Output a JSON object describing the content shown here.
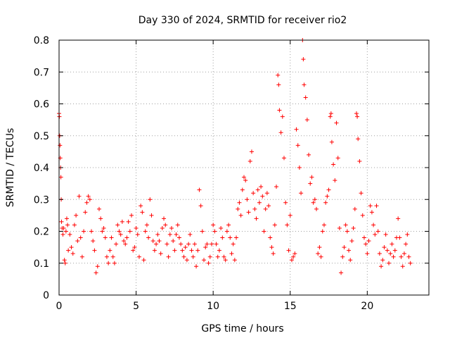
{
  "chart_data": {
    "type": "scatter",
    "title": "Day 330 of 2024, SRMTID for receiver rio2",
    "xlabel": "GPS time / hours",
    "ylabel": "SRMTID / TECUs",
    "xlim": [
      0,
      24
    ],
    "ylim": [
      0,
      0.8
    ],
    "grid": true,
    "marker": "+",
    "xticks": [
      {
        "value": 0,
        "label": "0"
      },
      {
        "value": 5,
        "label": "5"
      },
      {
        "value": 10,
        "label": "10"
      },
      {
        "value": 15,
        "label": "15"
      },
      {
        "value": 20,
        "label": "20"
      }
    ],
    "yticks": [
      {
        "value": 0,
        "label": "0"
      },
      {
        "value": 0.1,
        "label": "0.1"
      },
      {
        "value": 0.2,
        "label": "0.2"
      },
      {
        "value": 0.3,
        "label": "0.3"
      },
      {
        "value": 0.4,
        "label": "0.4"
      },
      {
        "value": 0.5,
        "label": "0.5"
      },
      {
        "value": 0.6,
        "label": "0.6"
      },
      {
        "value": 0.7,
        "label": "0.7"
      },
      {
        "value": 0.8,
        "label": "0.8"
      }
    ],
    "series": [
      {
        "name": "SRMTID",
        "color": "#ff0000",
        "points": [
          [
            0.0,
            0.57
          ],
          [
            0.02,
            0.56
          ],
          [
            0.04,
            0.5
          ],
          [
            0.06,
            0.47
          ],
          [
            0.08,
            0.43
          ],
          [
            0.1,
            0.4
          ],
          [
            0.12,
            0.37
          ],
          [
            0.14,
            0.3
          ],
          [
            0.16,
            0.23
          ],
          [
            0.2,
            0.21
          ],
          [
            0.25,
            0.19
          ],
          [
            0.3,
            0.21
          ],
          [
            0.35,
            0.11
          ],
          [
            0.4,
            0.1
          ],
          [
            0.45,
            0.2
          ],
          [
            0.5,
            0.24
          ],
          [
            0.55,
            0.22
          ],
          [
            0.6,
            0.14
          ],
          [
            0.7,
            0.19
          ],
          [
            0.8,
            0.15
          ],
          [
            0.9,
            0.13
          ],
          [
            1.0,
            0.22
          ],
          [
            1.1,
            0.25
          ],
          [
            1.2,
            0.17
          ],
          [
            1.3,
            0.31
          ],
          [
            1.4,
            0.18
          ],
          [
            1.5,
            0.12
          ],
          [
            1.6,
            0.2
          ],
          [
            1.7,
            0.26
          ],
          [
            1.8,
            0.29
          ],
          [
            1.9,
            0.31
          ],
          [
            2.0,
            0.3
          ],
          [
            2.1,
            0.2
          ],
          [
            2.2,
            0.17
          ],
          [
            2.3,
            0.14
          ],
          [
            2.4,
            0.07
          ],
          [
            2.5,
            0.09
          ],
          [
            2.6,
            0.27
          ],
          [
            2.7,
            0.24
          ],
          [
            2.8,
            0.2
          ],
          [
            2.9,
            0.21
          ],
          [
            3.0,
            0.18
          ],
          [
            3.1,
            0.12
          ],
          [
            3.2,
            0.1
          ],
          [
            3.3,
            0.14
          ],
          [
            3.4,
            0.18
          ],
          [
            3.5,
            0.12
          ],
          [
            3.6,
            0.1
          ],
          [
            3.7,
            0.16
          ],
          [
            3.8,
            0.22
          ],
          [
            3.9,
            0.2
          ],
          [
            4.0,
            0.19
          ],
          [
            4.1,
            0.23
          ],
          [
            4.2,
            0.17
          ],
          [
            4.3,
            0.16
          ],
          [
            4.4,
            0.18
          ],
          [
            4.5,
            0.23
          ],
          [
            4.6,
            0.2
          ],
          [
            4.7,
            0.25
          ],
          [
            4.8,
            0.14
          ],
          [
            4.9,
            0.15
          ],
          [
            5.0,
            0.21
          ],
          [
            5.1,
            0.19
          ],
          [
            5.2,
            0.12
          ],
          [
            5.3,
            0.28
          ],
          [
            5.4,
            0.26
          ],
          [
            5.5,
            0.11
          ],
          [
            5.6,
            0.2
          ],
          [
            5.7,
            0.22
          ],
          [
            5.8,
            0.18
          ],
          [
            5.9,
            0.3
          ],
          [
            6.0,
            0.25
          ],
          [
            6.1,
            0.17
          ],
          [
            6.2,
            0.14
          ],
          [
            6.3,
            0.16
          ],
          [
            6.4,
            0.19
          ],
          [
            6.5,
            0.17
          ],
          [
            6.6,
            0.13
          ],
          [
            6.7,
            0.21
          ],
          [
            6.8,
            0.24
          ],
          [
            6.9,
            0.22
          ],
          [
            7.0,
            0.16
          ],
          [
            7.1,
            0.12
          ],
          [
            7.2,
            0.19
          ],
          [
            7.3,
            0.21
          ],
          [
            7.4,
            0.17
          ],
          [
            7.5,
            0.14
          ],
          [
            7.6,
            0.19
          ],
          [
            7.7,
            0.22
          ],
          [
            7.8,
            0.18
          ],
          [
            7.9,
            0.16
          ],
          [
            8.0,
            0.14
          ],
          [
            8.1,
            0.12
          ],
          [
            8.2,
            0.15
          ],
          [
            8.3,
            0.11
          ],
          [
            8.4,
            0.16
          ],
          [
            8.5,
            0.19
          ],
          [
            8.6,
            0.14
          ],
          [
            8.7,
            0.12
          ],
          [
            8.8,
            0.16
          ],
          [
            8.9,
            0.09
          ],
          [
            9.0,
            0.14
          ],
          [
            9.1,
            0.33
          ],
          [
            9.2,
            0.28
          ],
          [
            9.3,
            0.2
          ],
          [
            9.4,
            0.11
          ],
          [
            9.5,
            0.15
          ],
          [
            9.6,
            0.16
          ],
          [
            9.7,
            0.1
          ],
          [
            9.8,
            0.12
          ],
          [
            9.9,
            0.16
          ],
          [
            10.0,
            0.22
          ],
          [
            10.1,
            0.2
          ],
          [
            10.2,
            0.16
          ],
          [
            10.3,
            0.12
          ],
          [
            10.4,
            0.14
          ],
          [
            10.5,
            0.21
          ],
          [
            10.6,
            0.18
          ],
          [
            10.7,
            0.12
          ],
          [
            10.8,
            0.11
          ],
          [
            10.9,
            0.2
          ],
          [
            11.0,
            0.22
          ],
          [
            11.1,
            0.18
          ],
          [
            11.2,
            0.13
          ],
          [
            11.3,
            0.16
          ],
          [
            11.4,
            0.11
          ],
          [
            11.5,
            0.18
          ],
          [
            11.6,
            0.27
          ],
          [
            11.7,
            0.29
          ],
          [
            11.8,
            0.25
          ],
          [
            11.9,
            0.33
          ],
          [
            12.0,
            0.37
          ],
          [
            12.1,
            0.36
          ],
          [
            12.2,
            0.3
          ],
          [
            12.3,
            0.26
          ],
          [
            12.4,
            0.42
          ],
          [
            12.5,
            0.45
          ],
          [
            12.6,
            0.32
          ],
          [
            12.7,
            0.27
          ],
          [
            12.8,
            0.24
          ],
          [
            12.9,
            0.33
          ],
          [
            13.0,
            0.29
          ],
          [
            13.1,
            0.34
          ],
          [
            13.2,
            0.31
          ],
          [
            13.3,
            0.2
          ],
          [
            13.4,
            0.27
          ],
          [
            13.5,
            0.32
          ],
          [
            13.6,
            0.28
          ],
          [
            13.7,
            0.18
          ],
          [
            13.8,
            0.15
          ],
          [
            13.9,
            0.13
          ],
          [
            14.0,
            0.22
          ],
          [
            14.1,
            0.34
          ],
          [
            14.2,
            0.69
          ],
          [
            14.25,
            0.66
          ],
          [
            14.3,
            0.58
          ],
          [
            14.4,
            0.51
          ],
          [
            14.5,
            0.56
          ],
          [
            14.6,
            0.43
          ],
          [
            14.7,
            0.29
          ],
          [
            14.8,
            0.22
          ],
          [
            14.9,
            0.14
          ],
          [
            15.0,
            0.25
          ],
          [
            15.1,
            0.11
          ],
          [
            15.2,
            0.12
          ],
          [
            15.3,
            0.13
          ],
          [
            15.4,
            0.52
          ],
          [
            15.5,
            0.47
          ],
          [
            15.6,
            0.4
          ],
          [
            15.7,
            0.32
          ],
          [
            15.8,
            0.8
          ],
          [
            15.85,
            0.74
          ],
          [
            15.9,
            0.66
          ],
          [
            16.0,
            0.62
          ],
          [
            16.1,
            0.55
          ],
          [
            16.2,
            0.44
          ],
          [
            16.3,
            0.35
          ],
          [
            16.4,
            0.37
          ],
          [
            16.5,
            0.29
          ],
          [
            16.6,
            0.3
          ],
          [
            16.7,
            0.27
          ],
          [
            16.8,
            0.13
          ],
          [
            16.9,
            0.15
          ],
          [
            17.0,
            0.12
          ],
          [
            17.1,
            0.2
          ],
          [
            17.2,
            0.22
          ],
          [
            17.3,
            0.29
          ],
          [
            17.4,
            0.31
          ],
          [
            17.5,
            0.33
          ],
          [
            17.6,
            0.56
          ],
          [
            17.65,
            0.57
          ],
          [
            17.7,
            0.48
          ],
          [
            17.8,
            0.41
          ],
          [
            17.9,
            0.36
          ],
          [
            18.0,
            0.54
          ],
          [
            18.1,
            0.43
          ],
          [
            18.2,
            0.21
          ],
          [
            18.3,
            0.07
          ],
          [
            18.4,
            0.12
          ],
          [
            18.5,
            0.15
          ],
          [
            18.6,
            0.22
          ],
          [
            18.7,
            0.2
          ],
          [
            18.8,
            0.14
          ],
          [
            18.9,
            0.11
          ],
          [
            19.0,
            0.17
          ],
          [
            19.1,
            0.21
          ],
          [
            19.2,
            0.27
          ],
          [
            19.3,
            0.57
          ],
          [
            19.35,
            0.56
          ],
          [
            19.4,
            0.49
          ],
          [
            19.5,
            0.42
          ],
          [
            19.6,
            0.32
          ],
          [
            19.7,
            0.25
          ],
          [
            19.8,
            0.18
          ],
          [
            19.9,
            0.16
          ],
          [
            20.0,
            0.13
          ],
          [
            20.1,
            0.17
          ],
          [
            20.2,
            0.28
          ],
          [
            20.3,
            0.26
          ],
          [
            20.4,
            0.22
          ],
          [
            20.5,
            0.19
          ],
          [
            20.6,
            0.28
          ],
          [
            20.7,
            0.2
          ],
          [
            20.8,
            0.13
          ],
          [
            20.9,
            0.09
          ],
          [
            21.0,
            0.11
          ],
          [
            21.1,
            0.15
          ],
          [
            21.2,
            0.19
          ],
          [
            21.3,
            0.14
          ],
          [
            21.4,
            0.1
          ],
          [
            21.5,
            0.13
          ],
          [
            21.6,
            0.16
          ],
          [
            21.7,
            0.12
          ],
          [
            21.8,
            0.14
          ],
          [
            21.9,
            0.18
          ],
          [
            22.0,
            0.24
          ],
          [
            22.1,
            0.18
          ],
          [
            22.2,
            0.12
          ],
          [
            22.3,
            0.09
          ],
          [
            22.4,
            0.13
          ],
          [
            22.5,
            0.16
          ],
          [
            22.6,
            0.19
          ],
          [
            22.7,
            0.12
          ],
          [
            22.8,
            0.1
          ]
        ]
      }
    ]
  }
}
